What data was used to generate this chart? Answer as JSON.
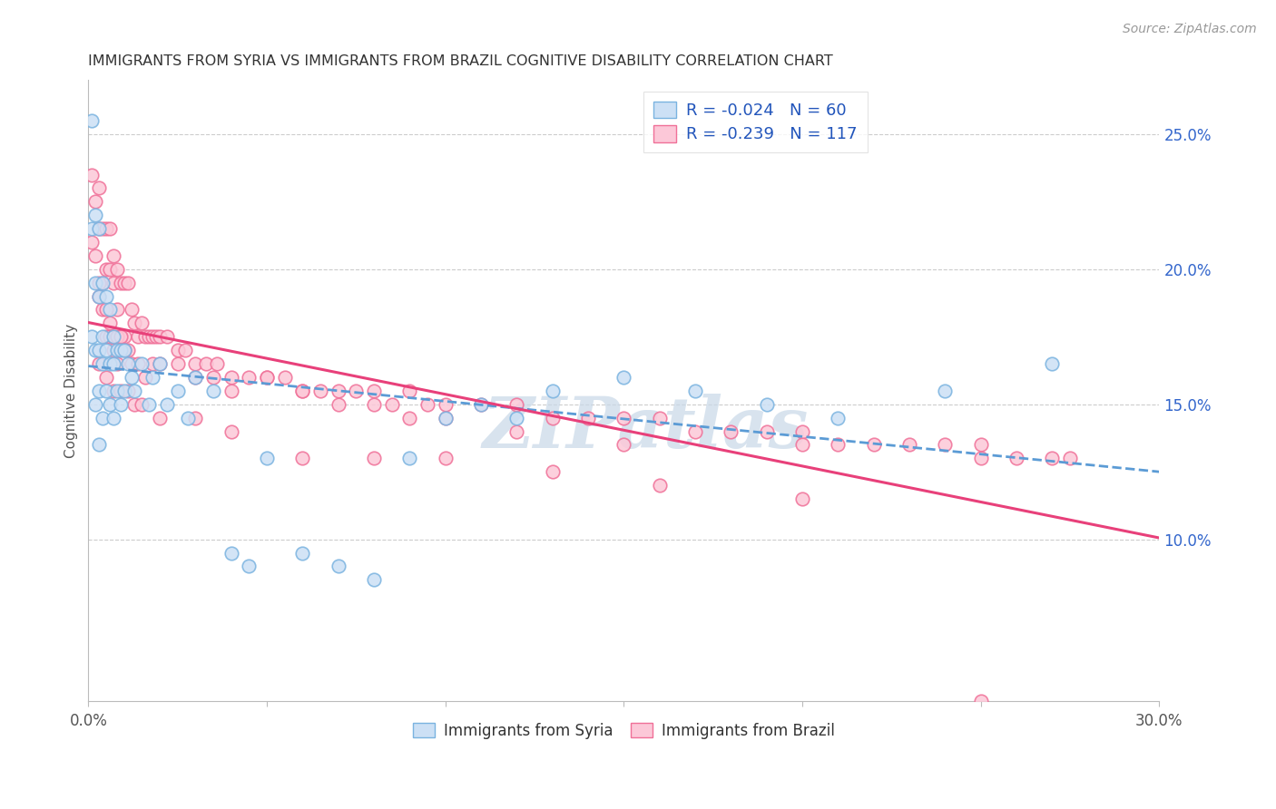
{
  "title": "IMMIGRANTS FROM SYRIA VS IMMIGRANTS FROM BRAZIL COGNITIVE DISABILITY CORRELATION CHART",
  "source": "Source: ZipAtlas.com",
  "ylabel": "Cognitive Disability",
  "right_ytick_vals": [
    0.1,
    0.15,
    0.2,
    0.25
  ],
  "xlim": [
    0.0,
    0.3
  ],
  "ylim": [
    0.04,
    0.27
  ],
  "syria_color_fill": "#cce0f5",
  "syria_color_edge": "#7ab3e0",
  "brazil_color_fill": "#fcc8d8",
  "brazil_color_edge": "#f07098",
  "syria_line_color": "#5b9bd5",
  "brazil_line_color": "#e8407a",
  "syria_R": -0.024,
  "syria_N": 60,
  "brazil_R": -0.239,
  "brazil_N": 117,
  "legend_text_color": "#2255bb",
  "watermark": "ZIPatlas",
  "syria_x": [
    0.001,
    0.001,
    0.001,
    0.002,
    0.002,
    0.002,
    0.002,
    0.003,
    0.003,
    0.003,
    0.003,
    0.003,
    0.004,
    0.004,
    0.004,
    0.004,
    0.005,
    0.005,
    0.005,
    0.006,
    0.006,
    0.006,
    0.007,
    0.007,
    0.007,
    0.008,
    0.008,
    0.009,
    0.009,
    0.01,
    0.01,
    0.011,
    0.012,
    0.013,
    0.015,
    0.017,
    0.018,
    0.02,
    0.022,
    0.025,
    0.028,
    0.03,
    0.035,
    0.04,
    0.045,
    0.05,
    0.06,
    0.07,
    0.08,
    0.09,
    0.1,
    0.11,
    0.12,
    0.13,
    0.15,
    0.17,
    0.19,
    0.21,
    0.24,
    0.27
  ],
  "syria_y": [
    0.255,
    0.215,
    0.175,
    0.22,
    0.195,
    0.17,
    0.15,
    0.215,
    0.19,
    0.17,
    0.155,
    0.135,
    0.195,
    0.175,
    0.165,
    0.145,
    0.19,
    0.17,
    0.155,
    0.185,
    0.165,
    0.15,
    0.175,
    0.165,
    0.145,
    0.17,
    0.155,
    0.17,
    0.15,
    0.17,
    0.155,
    0.165,
    0.16,
    0.155,
    0.165,
    0.15,
    0.16,
    0.165,
    0.15,
    0.155,
    0.145,
    0.16,
    0.155,
    0.095,
    0.09,
    0.13,
    0.095,
    0.09,
    0.085,
    0.13,
    0.145,
    0.15,
    0.145,
    0.155,
    0.16,
    0.155,
    0.15,
    0.145,
    0.155,
    0.165
  ],
  "brazil_x": [
    0.001,
    0.001,
    0.002,
    0.002,
    0.003,
    0.003,
    0.003,
    0.004,
    0.004,
    0.005,
    0.005,
    0.005,
    0.006,
    0.006,
    0.006,
    0.007,
    0.007,
    0.007,
    0.008,
    0.008,
    0.008,
    0.009,
    0.009,
    0.01,
    0.01,
    0.011,
    0.011,
    0.012,
    0.013,
    0.014,
    0.015,
    0.016,
    0.017,
    0.018,
    0.019,
    0.02,
    0.022,
    0.025,
    0.027,
    0.03,
    0.033,
    0.036,
    0.04,
    0.045,
    0.05,
    0.055,
    0.06,
    0.065,
    0.07,
    0.075,
    0.08,
    0.085,
    0.09,
    0.095,
    0.1,
    0.11,
    0.12,
    0.13,
    0.14,
    0.15,
    0.16,
    0.17,
    0.18,
    0.19,
    0.2,
    0.21,
    0.22,
    0.23,
    0.24,
    0.25,
    0.26,
    0.27,
    0.275,
    0.003,
    0.004,
    0.005,
    0.006,
    0.007,
    0.008,
    0.009,
    0.01,
    0.012,
    0.014,
    0.016,
    0.018,
    0.02,
    0.025,
    0.03,
    0.035,
    0.04,
    0.05,
    0.06,
    0.07,
    0.08,
    0.09,
    0.1,
    0.12,
    0.15,
    0.2,
    0.25,
    0.003,
    0.005,
    0.007,
    0.009,
    0.011,
    0.013,
    0.015,
    0.02,
    0.03,
    0.04,
    0.06,
    0.08,
    0.1,
    0.13,
    0.16,
    0.2,
    0.25
  ],
  "brazil_y": [
    0.235,
    0.21,
    0.225,
    0.205,
    0.23,
    0.215,
    0.19,
    0.215,
    0.195,
    0.215,
    0.2,
    0.175,
    0.215,
    0.2,
    0.175,
    0.205,
    0.195,
    0.17,
    0.2,
    0.185,
    0.165,
    0.195,
    0.175,
    0.195,
    0.175,
    0.195,
    0.17,
    0.185,
    0.18,
    0.175,
    0.18,
    0.175,
    0.175,
    0.175,
    0.175,
    0.175,
    0.175,
    0.17,
    0.17,
    0.165,
    0.165,
    0.165,
    0.16,
    0.16,
    0.16,
    0.16,
    0.155,
    0.155,
    0.155,
    0.155,
    0.155,
    0.15,
    0.155,
    0.15,
    0.15,
    0.15,
    0.15,
    0.145,
    0.145,
    0.145,
    0.145,
    0.14,
    0.14,
    0.14,
    0.14,
    0.135,
    0.135,
    0.135,
    0.135,
    0.135,
    0.13,
    0.13,
    0.13,
    0.195,
    0.185,
    0.185,
    0.18,
    0.175,
    0.175,
    0.175,
    0.17,
    0.165,
    0.165,
    0.16,
    0.165,
    0.165,
    0.165,
    0.16,
    0.16,
    0.155,
    0.16,
    0.155,
    0.15,
    0.15,
    0.145,
    0.145,
    0.14,
    0.135,
    0.135,
    0.13,
    0.165,
    0.16,
    0.155,
    0.155,
    0.155,
    0.15,
    0.15,
    0.145,
    0.145,
    0.14,
    0.13,
    0.13,
    0.13,
    0.125,
    0.12,
    0.115,
    0.04
  ]
}
